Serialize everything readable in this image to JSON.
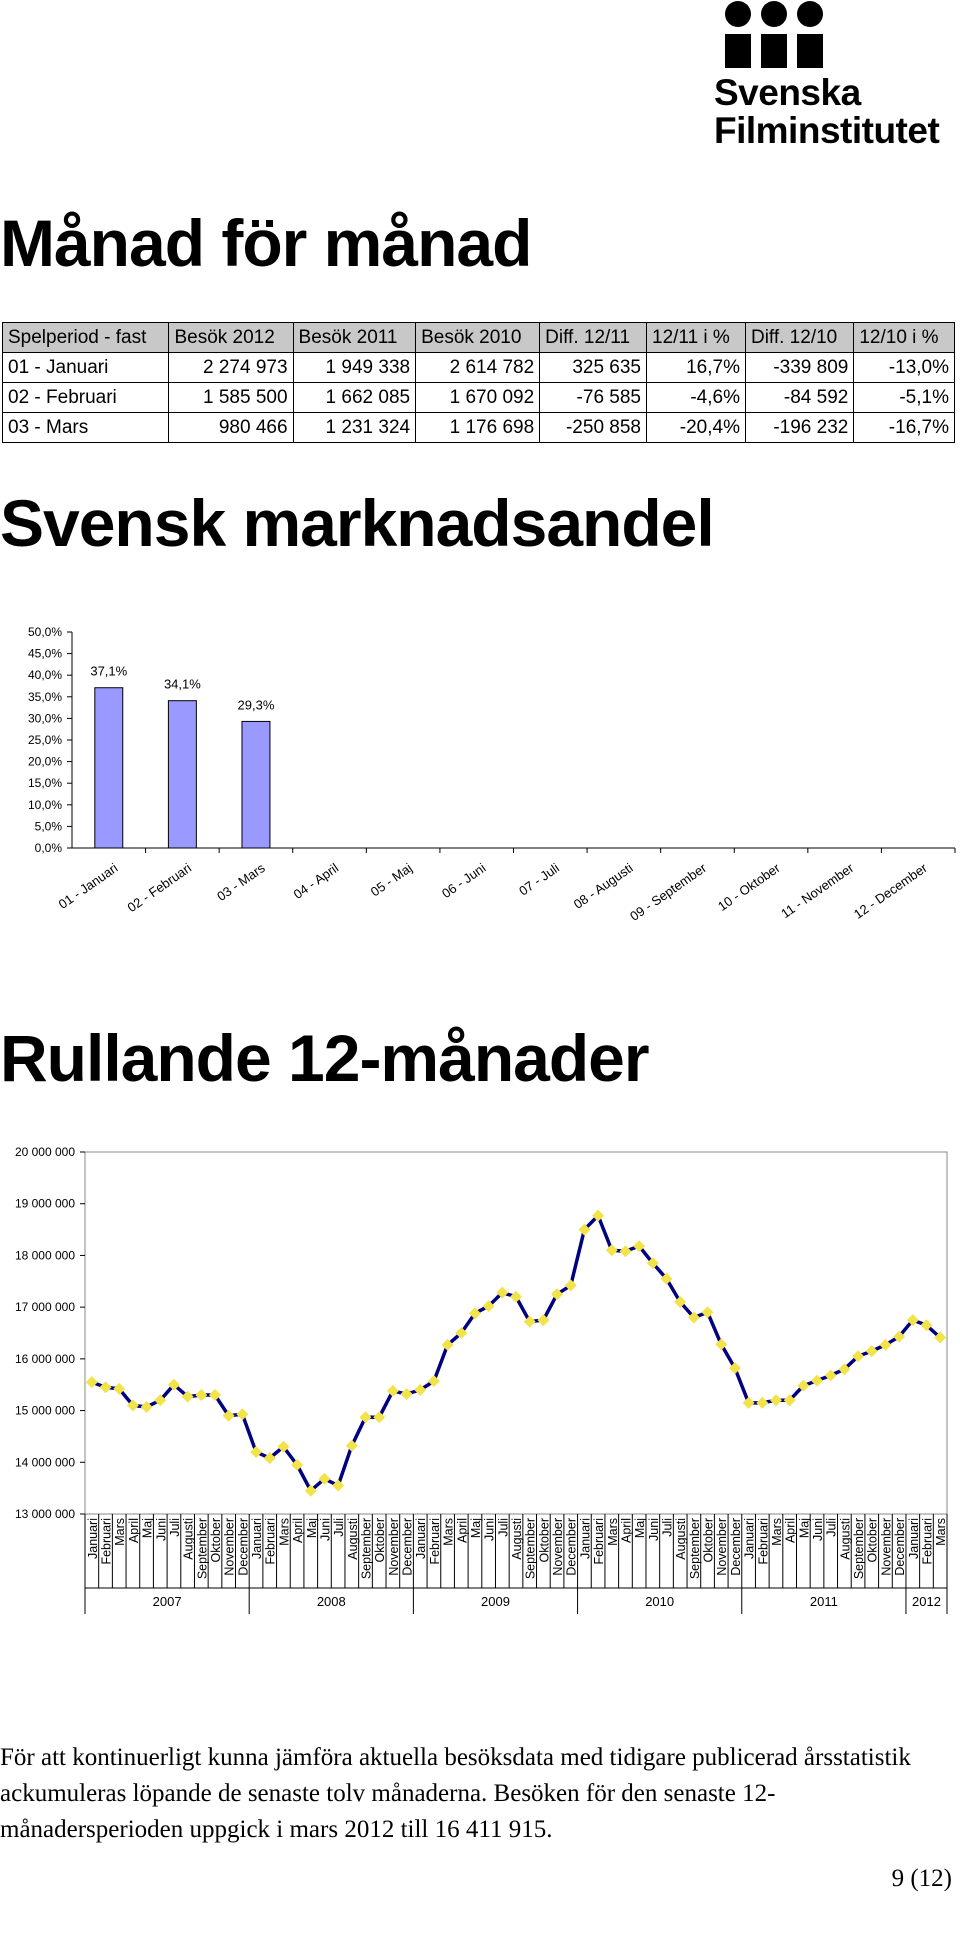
{
  "logo": {
    "line1": "Svenska",
    "line2": "Filminstitutet"
  },
  "title": "Månad för månad",
  "table": {
    "header": [
      "Spelperiod - fast",
      "Besök 2012",
      "Besök 2011",
      "Besök 2010",
      "Diff. 12/11",
      "12/11 i %",
      "Diff. 12/10",
      "12/10 i %"
    ],
    "rows": [
      [
        "01 - Januari",
        "2 274 973",
        "1 949 338",
        "2 614 782",
        "325 635",
        "16,7%",
        "-339 809",
        "-13,0%"
      ],
      [
        "02 - Februari",
        "1 585 500",
        "1 662 085",
        "1 670 092",
        "-76 585",
        "-4,6%",
        "-84 592",
        "-5,1%"
      ],
      [
        "03 - Mars",
        "980 466",
        "1 231 324",
        "1 176 698",
        "-250 858",
        "-20,4%",
        "-196 232",
        "-16,7%"
      ]
    ]
  },
  "chart_data": [
    {
      "type": "bar",
      "title": "Svensk marknadsandel",
      "categories": [
        "01 - Januari",
        "02 - Februari",
        "03 - Mars",
        "04 - April",
        "05 - Maj",
        "06 - Juni",
        "07 - Juli",
        "08 - Augusti",
        "09 - September",
        "10 - Oktober",
        "11 - November",
        "12 - December"
      ],
      "values": [
        37.1,
        34.1,
        29.3,
        null,
        null,
        null,
        null,
        null,
        null,
        null,
        null,
        null
      ],
      "value_labels": [
        "37,1%",
        "34,1%",
        "29,3%",
        null,
        null,
        null,
        null,
        null,
        null,
        null,
        null,
        null
      ],
      "color": "#9999ff",
      "ylim": [
        0,
        50
      ],
      "yticks": [
        {
          "value": 0,
          "label": "0,0%"
        },
        {
          "value": 5,
          "label": "5,0%"
        },
        {
          "value": 10,
          "label": "10,0%"
        },
        {
          "value": 15,
          "label": "15,0%"
        },
        {
          "value": 20,
          "label": "20,0%"
        },
        {
          "value": 25,
          "label": "25,0%"
        },
        {
          "value": 30,
          "label": "30,0%"
        },
        {
          "value": 35,
          "label": "35,0%"
        },
        {
          "value": 40,
          "label": "40,0%"
        },
        {
          "value": 45,
          "label": "45,0%"
        },
        {
          "value": 50,
          "label": "50,0%"
        }
      ]
    },
    {
      "type": "line",
      "title": "Rullande 12-månader",
      "categories": [
        "Januari",
        "Februari",
        "Mars",
        "April",
        "Maj",
        "Juni",
        "Juli",
        "Augusti",
        "September",
        "Oktober",
        "November",
        "December",
        "Januari",
        "Februari",
        "Mars",
        "April",
        "Maj",
        "Juni",
        "Juli",
        "Augusti",
        "September",
        "Oktober",
        "November",
        "December",
        "Januari",
        "Februari",
        "Mars",
        "April",
        "Maj",
        "Juni",
        "Juli",
        "Augusti",
        "September",
        "Oktober",
        "November",
        "December",
        "Januari",
        "Februari",
        "Mars",
        "April",
        "Maj",
        "Juni",
        "Juli",
        "Augusti",
        "September",
        "Oktober",
        "November",
        "December",
        "Januari",
        "Februari",
        "Mars",
        "April",
        "Maj",
        "Juni",
        "Juli",
        "Augusti",
        "September",
        "Oktober",
        "November",
        "December",
        "Januari",
        "Februari",
        "Mars"
      ],
      "years": [
        {
          "label": "2007",
          "span": 12
        },
        {
          "label": "2008",
          "span": 12
        },
        {
          "label": "2009",
          "span": 12
        },
        {
          "label": "2010",
          "span": 12
        },
        {
          "label": "2011",
          "span": 12
        },
        {
          "label": "2012",
          "span": 3
        }
      ],
      "values": [
        15550000,
        15450000,
        15420000,
        15100000,
        15070000,
        15200000,
        15500000,
        15270000,
        15300000,
        15300000,
        14900000,
        14930000,
        14200000,
        14080000,
        14300000,
        13950000,
        13450000,
        13680000,
        13550000,
        14320000,
        14870000,
        14870000,
        15380000,
        15320000,
        15400000,
        15570000,
        16270000,
        16500000,
        16880000,
        17020000,
        17280000,
        17200000,
        16720000,
        16750000,
        17250000,
        17420000,
        18500000,
        18770000,
        18100000,
        18080000,
        18180000,
        17850000,
        17550000,
        17100000,
        16800000,
        16900000,
        16280000,
        15820000,
        15150000,
        15150000,
        15200000,
        15200000,
        15480000,
        15580000,
        15680000,
        15800000,
        16050000,
        16150000,
        16270000,
        16430000,
        16750000,
        16650000,
        16411915
      ],
      "color": "#000080",
      "marker_color": "#f2e34a",
      "ylim": [
        13000000,
        20000000
      ],
      "yticks": [
        {
          "value": 13000000,
          "label": "13 000 000"
        },
        {
          "value": 14000000,
          "label": "14 000 000"
        },
        {
          "value": 15000000,
          "label": "15 000 000"
        },
        {
          "value": 16000000,
          "label": "16 000 000"
        },
        {
          "value": 17000000,
          "label": "17 000 000"
        },
        {
          "value": 18000000,
          "label": "18 000 000"
        },
        {
          "value": 19000000,
          "label": "19 000 000"
        },
        {
          "value": 20000000,
          "label": "20 000 000"
        }
      ]
    }
  ],
  "paragraph": "För att kontinuerligt kunna jämföra aktuella besöksdata med tidigare publicerad årsstatistik ackumuleras löpande de senaste tolv månaderna. Besöken för den senaste 12-månadersperioden uppgick i mars 2012 till 16 411 915.",
  "page_number": "9 (12)"
}
